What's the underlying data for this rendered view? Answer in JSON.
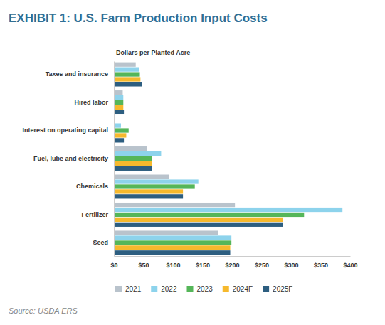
{
  "chart_data": {
    "type": "bar",
    "orientation": "horizontal",
    "title": "EXHIBIT 1: U.S. Farm Production Input Costs",
    "x_label": "Dollars per Planted Acre",
    "source": "Source: USDA ERS",
    "categories": [
      "Taxes and insurance",
      "Hired labor",
      "Interest on operating capital",
      "Fuel, lube and electricity",
      "Chemicals",
      "Fertilizer",
      "Seed"
    ],
    "series": [
      {
        "name": "2021",
        "color": "#b9c3cc",
        "values": [
          37,
          15,
          2,
          56,
          94,
          205,
          177
        ]
      },
      {
        "name": "2022",
        "color": "#8dd3ec",
        "values": [
          43,
          16,
          12,
          80,
          143,
          387,
          199
        ]
      },
      {
        "name": "2023",
        "color": "#55b659",
        "values": [
          44,
          16,
          25,
          65,
          137,
          322,
          199
        ]
      },
      {
        "name": "2024F",
        "color": "#f6b92d",
        "values": [
          45,
          16,
          21,
          64,
          117,
          286,
          197
        ]
      },
      {
        "name": "2025F",
        "color": "#2d5e80",
        "values": [
          47,
          17,
          17,
          64,
          117,
          286,
          197
        ]
      }
    ],
    "xlim": [
      0,
      400
    ],
    "xticks": [
      {
        "value": 0,
        "label": "$0"
      },
      {
        "value": 50,
        "label": "$50"
      },
      {
        "value": 100,
        "label": "$100"
      },
      {
        "value": 150,
        "label": "$150"
      },
      {
        "value": 200,
        "label": "$200"
      },
      {
        "value": 250,
        "label": "$250"
      },
      {
        "value": 300,
        "label": "$300"
      },
      {
        "value": 350,
        "label": "$350"
      },
      {
        "value": 400,
        "label": "$400"
      }
    ],
    "grid": false,
    "legend": "bottom"
  }
}
